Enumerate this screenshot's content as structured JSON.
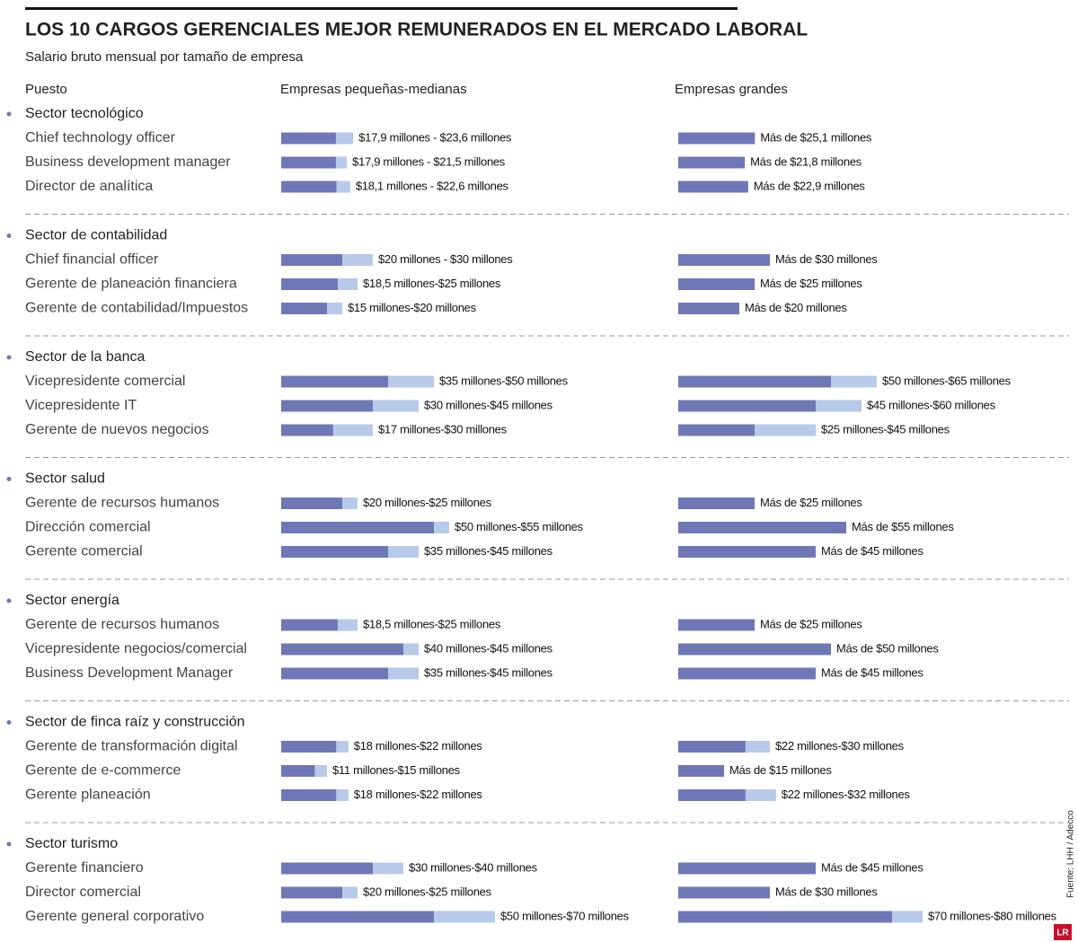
{
  "chart_data": {
    "type": "range_bar",
    "title": "LOS 10 CARGOS GERENCIALES MEJOR REMUNERADOS EN EL MERCADO LABORAL",
    "subtitle": "Salario bruto mensual por tamaño de empresa",
    "headers": [
      "Puesto",
      "Empresas pequeñas-medianas",
      "Empresas grandes"
    ],
    "source": "Fuente: LHH / Adecco",
    "logo": "LR",
    "colors": {
      "min": "#6f78b6",
      "max": "#b7caea"
    },
    "sectors": [
      {
        "name": "Sector tecnológico",
        "rows": [
          {
            "label": "Chief technology officer",
            "pyme": {
              "values": [
                17.9,
                23.6
              ],
              "value_label": "$17,9 millones - $23,6 millones"
            },
            "grandes": {
              "values": [
                25.1
              ],
              "value_label": "Más de $25,1 millones"
            }
          },
          {
            "label": "Business development manager",
            "pyme": {
              "values": [
                17.9,
                21.5
              ],
              "value_label": "$17,9 millones - $21,5 millones"
            },
            "grandes": {
              "values": [
                21.8
              ],
              "value_label": "Más de $21,8 millones"
            }
          },
          {
            "label": "Director de analítica",
            "pyme": {
              "values": [
                18.1,
                22.6
              ],
              "value_label": "$18,1 millones - $22,6 millones"
            },
            "grandes": {
              "values": [
                22.9
              ],
              "value_label": "Más de $22,9 millones"
            }
          }
        ]
      },
      {
        "name": "Sector de contabilidad",
        "rows": [
          {
            "label": "Chief financial officer",
            "pyme": {
              "values": [
                20,
                30
              ],
              "value_label": "$20 millones - $30 millones"
            },
            "grandes": {
              "values": [
                30
              ],
              "value_label": "Más de $30 millones"
            }
          },
          {
            "label": "Gerente de planeación financiera",
            "pyme": {
              "values": [
                18.5,
                25
              ],
              "value_label": "$18,5 millones-$25 millones"
            },
            "grandes": {
              "values": [
                25
              ],
              "value_label": "Más de $25 millones"
            }
          },
          {
            "label": "Gerente de contabilidad/Impuestos",
            "pyme": {
              "values": [
                15,
                20
              ],
              "value_label": "$15 millones-$20 millones"
            },
            "grandes": {
              "values": [
                20
              ],
              "value_label": "Más de $20 millones"
            }
          }
        ]
      },
      {
        "name": "Sector de la banca",
        "rows": [
          {
            "label": "Vicepresidente comercial",
            "pyme": {
              "values": [
                35,
                50
              ],
              "value_label": "$35 millones-$50 millones"
            },
            "grandes": {
              "values": [
                50,
                65
              ],
              "value_label": "$50 millones-$65 millones"
            }
          },
          {
            "label": "Vicepresidente IT",
            "pyme": {
              "values": [
                30,
                45
              ],
              "value_label": "$30 millones-$45 millones"
            },
            "grandes": {
              "values": [
                45,
                60
              ],
              "value_label": "$45 millones-$60 millones"
            }
          },
          {
            "label": "Gerente de nuevos negocios",
            "pyme": {
              "values": [
                17,
                30
              ],
              "value_label": "$17 millones-$30 millones"
            },
            "grandes": {
              "values": [
                25,
                45
              ],
              "value_label": "$25 millones-$45 millones"
            }
          }
        ]
      },
      {
        "name": "Sector salud",
        "rows": [
          {
            "label": "Gerente de recursos humanos",
            "pyme": {
              "values": [
                20,
                25
              ],
              "value_label": "$20 millones-$25 millones"
            },
            "grandes": {
              "values": [
                25
              ],
              "value_label": "Más de $25 millones"
            }
          },
          {
            "label": "Dirección comercial",
            "pyme": {
              "values": [
                50,
                55
              ],
              "value_label": "$50 millones-$55 millones"
            },
            "grandes": {
              "values": [
                55
              ],
              "value_label": "Más de $55 millones"
            }
          },
          {
            "label": "Gerente comercial",
            "pyme": {
              "values": [
                35,
                45
              ],
              "value_label": "$35 millones-$45 millones"
            },
            "grandes": {
              "values": [
                45
              ],
              "value_label": "Más de $45 millones"
            }
          }
        ]
      },
      {
        "name": "Sector energía",
        "rows": [
          {
            "label": "Gerente de recursos humanos",
            "pyme": {
              "values": [
                18.5,
                25
              ],
              "value_label": "$18,5 millones-$25 millones"
            },
            "grandes": {
              "values": [
                25
              ],
              "value_label": "Más de $25 millones"
            }
          },
          {
            "label": "Vicepresidente negocios/comercial",
            "pyme": {
              "values": [
                40,
                45
              ],
              "value_label": "$40 millones-$45 millones"
            },
            "grandes": {
              "values": [
                50
              ],
              "value_label": "Más de $50 millones"
            }
          },
          {
            "label": "Business Development Manager",
            "pyme": {
              "values": [
                35,
                45
              ],
              "value_label": "$35 millones-$45 millones"
            },
            "grandes": {
              "values": [
                45
              ],
              "value_label": "Más de $45 millones"
            }
          }
        ]
      },
      {
        "name": "Sector de finca raíz y construcción",
        "rows": [
          {
            "label": "Gerente de transformación digital",
            "pyme": {
              "values": [
                18,
                22
              ],
              "value_label": "$18 millones-$22 millones"
            },
            "grandes": {
              "values": [
                22,
                30
              ],
              "value_label": "$22 millones-$30 millones"
            }
          },
          {
            "label": "Gerente de e-commerce",
            "pyme": {
              "values": [
                11,
                15
              ],
              "value_label": "$11 millones-$15 millones"
            },
            "grandes": {
              "values": [
                15
              ],
              "value_label": "Más de $15 millones"
            }
          },
          {
            "label": "Gerente planeación",
            "pyme": {
              "values": [
                18,
                22
              ],
              "value_label": "$18 millones-$22 millones"
            },
            "grandes": {
              "values": [
                22,
                32
              ],
              "value_label": "$22 millones-$32 millones"
            }
          }
        ]
      },
      {
        "name": "Sector turismo",
        "rows": [
          {
            "label": "Gerente financiero",
            "pyme": {
              "values": [
                30,
                40
              ],
              "value_label": "$30 millones-$40 millones"
            },
            "grandes": {
              "values": [
                45
              ],
              "value_label": "Más de $45 millones"
            }
          },
          {
            "label": "Director comercial",
            "pyme": {
              "values": [
                20,
                25
              ],
              "value_label": "$20 millones-$25 millones"
            },
            "grandes": {
              "values": [
                30
              ],
              "value_label": "Más de $30 millones"
            }
          },
          {
            "label": "Gerente general corporativo",
            "pyme": {
              "values": [
                50,
                70
              ],
              "value_label": "$50 millones-$70 millones"
            },
            "grandes": {
              "values": [
                70,
                80
              ],
              "value_label": "$70 millones-$80 millones"
            }
          }
        ]
      }
    ]
  }
}
